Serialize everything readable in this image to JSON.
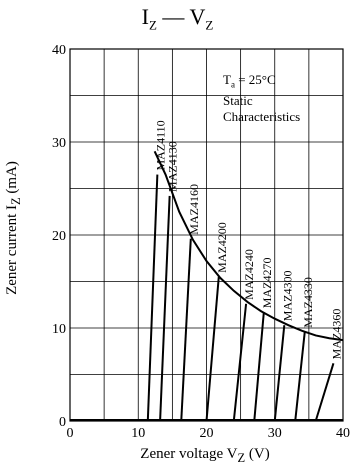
{
  "chart_data": {
    "type": "line",
    "title": {
      "main_left": "I",
      "main_left_sub": "Z",
      "dash": " — ",
      "main_right": "V",
      "main_right_sub": "Z"
    },
    "xlabel": {
      "text": "Zener voltage  V",
      "sub": "Z",
      "unit": "  (V)"
    },
    "ylabel": {
      "text": "Zener current  I",
      "sub": "Z",
      "unit": "  (mA)"
    },
    "xlim": [
      0,
      40
    ],
    "ylim": [
      0,
      40
    ],
    "x_ticks": [
      "0",
      "10",
      "20",
      "30",
      "40"
    ],
    "y_ticks": [
      "0",
      "10",
      "20",
      "30",
      "40"
    ],
    "grid": true,
    "legend_position": "top-right",
    "legend": {
      "line1_prefix": "T",
      "line1_sub": "a",
      "line1_suffix": " = 25°C",
      "line2": "Static",
      "line3": "Characteristics"
    },
    "series": [
      {
        "name": "MAZ4110",
        "points": [
          [
            11.4,
            0
          ],
          [
            12.8,
            26.5
          ]
        ]
      },
      {
        "name": "MAZ4130",
        "points": [
          [
            13.2,
            0
          ],
          [
            14.6,
            24.2
          ]
        ]
      },
      {
        "name": "MAZ4160",
        "points": [
          [
            16.3,
            0
          ],
          [
            17.7,
            19.6
          ]
        ]
      },
      {
        "name": "MAZ4200",
        "points": [
          [
            20.0,
            0
          ],
          [
            21.8,
            15.5
          ]
        ]
      },
      {
        "name": "MAZ4240",
        "points": [
          [
            24.0,
            0
          ],
          [
            25.8,
            12.6
          ]
        ]
      },
      {
        "name": "MAZ4270",
        "points": [
          [
            27.0,
            0
          ],
          [
            28.4,
            11.7
          ]
        ]
      },
      {
        "name": "MAZ4300",
        "points": [
          [
            30.0,
            0
          ],
          [
            31.4,
            10.3
          ]
        ]
      },
      {
        "name": "MAZ4330",
        "points": [
          [
            33.0,
            0
          ],
          [
            34.4,
            9.6
          ]
        ]
      },
      {
        "name": "MAZ4360",
        "points": [
          [
            36.0,
            0
          ],
          [
            38.6,
            6.2
          ]
        ]
      }
    ],
    "boundary_curve": [
      [
        12.4,
        29
      ],
      [
        14.0,
        26.5
      ],
      [
        16.0,
        22.5
      ],
      [
        18.0,
        19.5
      ],
      [
        20.0,
        17.2
      ],
      [
        22.0,
        15.4
      ],
      [
        24.0,
        14.0
      ],
      [
        26.0,
        12.8
      ],
      [
        28.0,
        11.8
      ],
      [
        30.0,
        11.0
      ],
      [
        32.0,
        10.3
      ],
      [
        34.0,
        9.7
      ],
      [
        36.0,
        9.2
      ],
      [
        38.0,
        8.9
      ],
      [
        40.0,
        8.7
      ]
    ]
  }
}
